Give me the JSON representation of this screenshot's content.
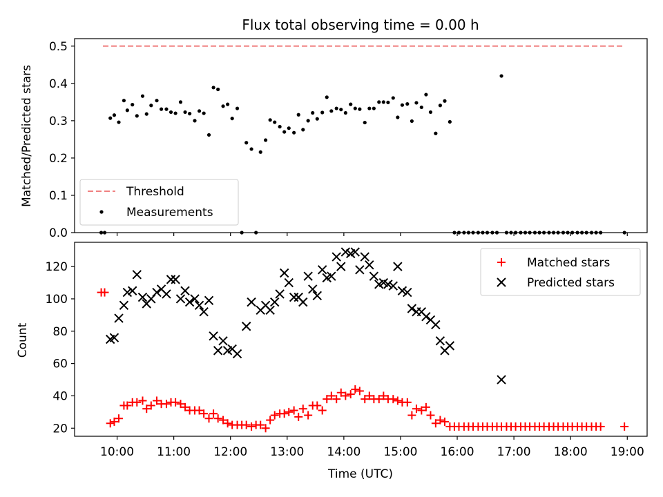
{
  "figure": {
    "title": "Flux total observing time = 0.00 h"
  },
  "chart_data": [
    {
      "type": "scatter",
      "title": "Flux total observing time = 0.00 h",
      "xlabel": "",
      "ylabel": "Matched/Predicted stars",
      "xlim": [
        9.25,
        19.35
      ],
      "ylim": [
        0,
        0.52
      ],
      "yticks": [
        "0.0",
        "0.1",
        "0.2",
        "0.3",
        "0.4",
        "0.5"
      ],
      "grid": false,
      "legend": "lower-left",
      "threshold": {
        "name": "Threshold",
        "value": 0.5,
        "x_start": 9.75,
        "x_end": 18.95,
        "color": "#f08080"
      },
      "series": [
        {
          "name": "Measurements",
          "color": "#000000",
          "x": [
            9.72,
            9.78,
            9.88,
            9.95,
            10.03,
            10.12,
            10.18,
            10.27,
            10.35,
            10.45,
            10.52,
            10.6,
            10.7,
            10.78,
            10.87,
            10.95,
            11.03,
            11.12,
            11.2,
            11.28,
            11.37,
            11.45,
            11.53,
            11.62,
            11.7,
            11.78,
            11.87,
            11.95,
            12.03,
            12.12,
            12.2,
            12.28,
            12.37,
            12.45,
            12.53,
            12.62,
            12.7,
            12.78,
            12.87,
            12.95,
            13.03,
            13.12,
            13.2,
            13.28,
            13.37,
            13.45,
            13.53,
            13.62,
            13.7,
            13.78,
            13.87,
            13.95,
            14.03,
            14.12,
            14.2,
            14.28,
            14.37,
            14.45,
            14.53,
            14.62,
            14.7,
            14.78,
            14.87,
            14.95,
            15.03,
            15.12,
            15.2,
            15.28,
            15.37,
            15.45,
            15.53,
            15.62,
            15.7,
            15.78,
            15.87,
            15.95,
            16.03,
            16.12,
            16.2,
            16.28,
            16.37,
            16.45,
            16.53,
            16.62,
            16.7,
            16.78,
            16.87,
            16.95,
            17.03,
            17.12,
            17.2,
            17.28,
            17.37,
            17.45,
            17.53,
            17.62,
            17.7,
            17.78,
            17.87,
            17.95,
            18.03,
            18.12,
            18.2,
            18.28,
            18.37,
            18.45,
            18.53,
            18.95
          ],
          "y": [
            0,
            0,
            0.307,
            0.315,
            0.296,
            0.354,
            0.328,
            0.343,
            0.313,
            0.366,
            0.318,
            0.341,
            0.354,
            0.331,
            0.331,
            0.323,
            0.32,
            0.35,
            0.323,
            0.319,
            0.3,
            0.326,
            0.32,
            0.262,
            0.389,
            0.384,
            0.339,
            0.344,
            0.306,
            0.333,
            0,
            0.241,
            0.224,
            0,
            0.216,
            0.248,
            0.302,
            0.296,
            0.284,
            0.27,
            0.28,
            0.268,
            0.316,
            0.276,
            0.3,
            0.321,
            0.305,
            0.322,
            0.363,
            0.326,
            0.333,
            0.33,
            0.321,
            0.344,
            0.333,
            0.331,
            0.295,
            0.333,
            0.333,
            0.35,
            0.35,
            0.349,
            0.361,
            0.309,
            0.342,
            0.345,
            0.299,
            0.348,
            0.336,
            0.37,
            0.323,
            0.266,
            0.341,
            0.353,
            0.297,
            0,
            0,
            0,
            0,
            0,
            0,
            0,
            0,
            0,
            0,
            0.42,
            0,
            0,
            0,
            0,
            0,
            0,
            0,
            0,
            0,
            0,
            0,
            0,
            0,
            0,
            0,
            0,
            0,
            0,
            0,
            0,
            0,
            0
          ]
        }
      ]
    },
    {
      "type": "scatter",
      "xlabel": "Time (UTC)",
      "ylabel": "Count",
      "xlim": [
        9.25,
        19.35
      ],
      "ylim": [
        15,
        135
      ],
      "xticks": [
        "10:00",
        "11:00",
        "12:00",
        "13:00",
        "14:00",
        "15:00",
        "16:00",
        "17:00",
        "18:00",
        "19:00"
      ],
      "xtick_values": [
        10,
        11,
        12,
        13,
        14,
        15,
        16,
        17,
        18,
        19
      ],
      "yticks": [
        "20",
        "40",
        "60",
        "80",
        "100",
        "120"
      ],
      "ytick_values": [
        20,
        40,
        60,
        80,
        100,
        120
      ],
      "grid": false,
      "legend": "upper-right",
      "series": [
        {
          "name": "Matched stars",
          "marker": "+",
          "color": "#ff0000",
          "x": [
            9.72,
            9.78,
            9.88,
            9.95,
            10.03,
            10.12,
            10.18,
            10.27,
            10.35,
            10.45,
            10.52,
            10.6,
            10.7,
            10.78,
            10.87,
            10.95,
            11.03,
            11.12,
            11.2,
            11.28,
            11.37,
            11.45,
            11.53,
            11.62,
            11.7,
            11.78,
            11.87,
            11.95,
            12.03,
            12.12,
            12.2,
            12.28,
            12.37,
            12.45,
            12.53,
            12.62,
            12.7,
            12.78,
            12.87,
            12.95,
            13.03,
            13.12,
            13.2,
            13.28,
            13.37,
            13.45,
            13.53,
            13.62,
            13.7,
            13.78,
            13.87,
            13.95,
            14.03,
            14.12,
            14.2,
            14.28,
            14.37,
            14.45,
            14.53,
            14.62,
            14.7,
            14.78,
            14.87,
            14.95,
            15.03,
            15.12,
            15.2,
            15.28,
            15.37,
            15.45,
            15.53,
            15.62,
            15.7,
            15.78,
            15.87,
            15.95,
            16.03,
            16.12,
            16.2,
            16.28,
            16.37,
            16.45,
            16.53,
            16.62,
            16.7,
            16.78,
            16.87,
            16.95,
            17.03,
            17.12,
            17.2,
            17.28,
            17.37,
            17.45,
            17.53,
            17.62,
            17.7,
            17.78,
            17.87,
            17.95,
            18.03,
            18.12,
            18.2,
            18.28,
            18.37,
            18.45,
            18.53,
            18.95
          ],
          "y": [
            104,
            104,
            23,
            24,
            26,
            34,
            34,
            36,
            36,
            37,
            32,
            34,
            37,
            35,
            35,
            36,
            36,
            35,
            33,
            31,
            31,
            31,
            29,
            26,
            29,
            26,
            25,
            23,
            22,
            22,
            22,
            22,
            21,
            22,
            22,
            20,
            25,
            28,
            29,
            29,
            30,
            31,
            27,
            32,
            28,
            34,
            34,
            31,
            38,
            40,
            38,
            42,
            40,
            41,
            44,
            43,
            38,
            40,
            38,
            38,
            40,
            38,
            38,
            37,
            36,
            36,
            28,
            32,
            31,
            33,
            28,
            23,
            25,
            24,
            21,
            21,
            21,
            21,
            21,
            21,
            21,
            21,
            21,
            21,
            21,
            21,
            21,
            21,
            21,
            21,
            21,
            21,
            21,
            21,
            21,
            21,
            21,
            21,
            21,
            21,
            21,
            21,
            21,
            21,
            21,
            21,
            21,
            21
          ]
        },
        {
          "name": "Predicted stars",
          "marker": "x",
          "color": "#000000",
          "x": [
            9.88,
            9.95,
            10.03,
            10.12,
            10.18,
            10.27,
            10.35,
            10.45,
            10.52,
            10.6,
            10.7,
            10.78,
            10.87,
            10.95,
            11.03,
            11.12,
            11.2,
            11.28,
            11.37,
            11.45,
            11.53,
            11.62,
            11.7,
            11.78,
            11.87,
            11.95,
            12.03,
            12.12,
            12.28,
            12.37,
            12.53,
            12.62,
            12.7,
            12.78,
            12.87,
            12.95,
            13.03,
            13.12,
            13.2,
            13.28,
            13.37,
            13.45,
            13.53,
            13.62,
            13.7,
            13.78,
            13.87,
            13.95,
            14.03,
            14.12,
            14.2,
            14.28,
            14.37,
            14.45,
            14.53,
            14.62,
            14.7,
            14.78,
            14.87,
            14.95,
            15.03,
            15.12,
            15.2,
            15.28,
            15.37,
            15.45,
            15.53,
            15.62,
            15.7,
            15.78,
            15.87,
            16.78
          ],
          "y": [
            75,
            76,
            88,
            96,
            104,
            105,
            115,
            101,
            97,
            100,
            104,
            106,
            103,
            112,
            112,
            100,
            105,
            98,
            100,
            96,
            92,
            99,
            77,
            68,
            74,
            68,
            69,
            66,
            83,
            98,
            93,
            96,
            93,
            98,
            103,
            116,
            110,
            101,
            101,
            98,
            114,
            106,
            102,
            118,
            113,
            114,
            126,
            120,
            129,
            128,
            129,
            118,
            126,
            121,
            114,
            109,
            110,
            109,
            108,
            120,
            105,
            104,
            94,
            92,
            92,
            89,
            87,
            84,
            74,
            68,
            71,
            50
          ]
        }
      ]
    }
  ]
}
